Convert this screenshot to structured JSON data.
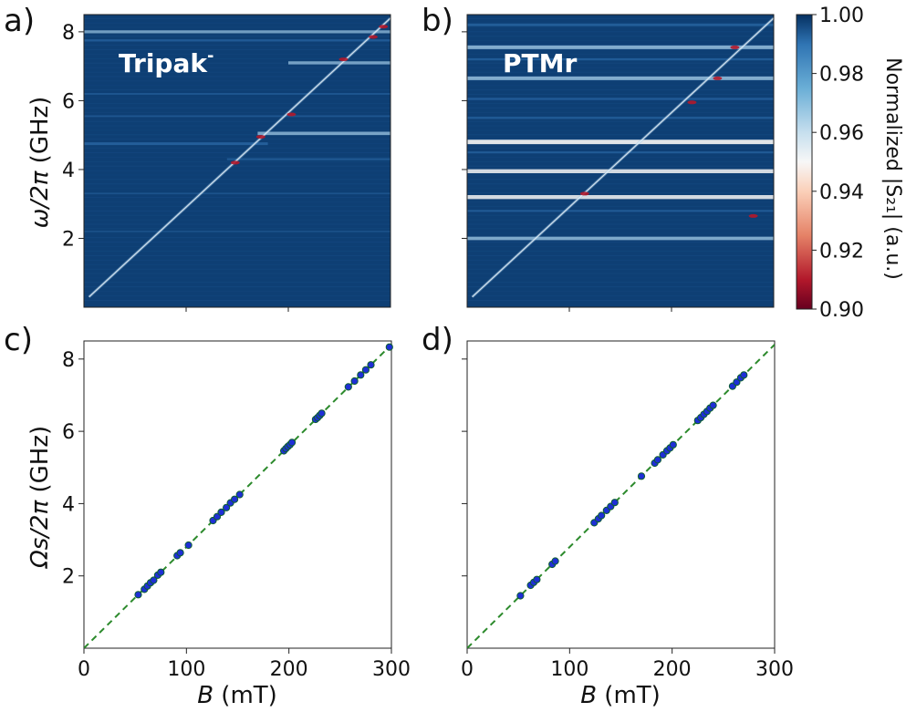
{
  "figure": {
    "panel_labels": [
      "a)",
      "b)",
      "c)",
      "d)"
    ]
  },
  "colors": {
    "map_bg": "#0e3f74",
    "map_mid": "#2f6fae",
    "map_light": "#9fc8e4",
    "map_white": "#f3f3f3",
    "map_red": "#b2182b",
    "marker_fill": "#1f2fd6",
    "marker_edge": "#0d5f2f",
    "fit_line": "#2c8a2c"
  },
  "chart_data": [
    {
      "id": "a",
      "type": "heatmap",
      "panel": "a)",
      "annotation": "Tripak",
      "annotation_sup": "-",
      "ylabel_main": "ω/2π",
      "ylabel_unit": " (GHz)",
      "xlabel": "",
      "xlim": [
        0,
        300
      ],
      "ylim": [
        0,
        8.5
      ],
      "yticks": [
        2,
        4,
        6,
        8
      ],
      "ytick_labels": [
        "2",
        "4",
        "6",
        "8"
      ],
      "xticks": [
        100,
        200
      ],
      "diagonal": {
        "from": [
          5,
          0.3
        ],
        "to": [
          300,
          8.4
        ]
      },
      "horizontal_lines": [
        {
          "f": 8.0,
          "weight": 0.55,
          "b_start": 0,
          "b_end": 300
        },
        {
          "f": 7.75,
          "weight": 0.35,
          "b_start": 0,
          "b_end": 300
        },
        {
          "f": 7.1,
          "weight": 0.6,
          "b_start": 200,
          "b_end": 300
        },
        {
          "f": 5.05,
          "weight": 0.65,
          "b_start": 170,
          "b_end": 300
        },
        {
          "f": 4.75,
          "weight": 0.5,
          "b_start": 0,
          "b_end": 180
        },
        {
          "f": 4.3,
          "weight": 0.3,
          "b_start": 140,
          "b_end": 300
        },
        {
          "f": 6.2,
          "weight": 0.2,
          "b_start": 0,
          "b_end": 300
        },
        {
          "f": 5.55,
          "weight": 0.2,
          "b_start": 0,
          "b_end": 300
        },
        {
          "f": 3.3,
          "weight": 0.12,
          "b_start": 0,
          "b_end": 300
        },
        {
          "f": 2.2,
          "weight": 0.12,
          "b_start": 0,
          "b_end": 300
        }
      ],
      "red_spots": [
        {
          "b": 148,
          "f": 4.2
        },
        {
          "b": 173,
          "f": 4.95
        },
        {
          "b": 203,
          "f": 5.6
        },
        {
          "b": 254,
          "f": 7.2
        },
        {
          "b": 283,
          "f": 7.85
        },
        {
          "b": 293,
          "f": 8.15
        }
      ]
    },
    {
      "id": "b",
      "type": "heatmap",
      "panel": "b)",
      "annotation": "PTMr",
      "xlabel": "",
      "xlim": [
        0,
        300
      ],
      "ylim": [
        0,
        8.5
      ],
      "yticks": [
        2,
        4,
        6,
        8
      ],
      "xticks": [
        100,
        200
      ],
      "diagonal": {
        "from": [
          5,
          0.3
        ],
        "to": [
          300,
          8.4
        ]
      },
      "horizontal_lines": [
        {
          "f": 8.2,
          "weight": 0.45,
          "b_start": 0,
          "b_end": 300
        },
        {
          "f": 7.55,
          "weight": 0.75,
          "b_start": 0,
          "b_end": 300
        },
        {
          "f": 7.2,
          "weight": 0.35,
          "b_start": 0,
          "b_end": 300
        },
        {
          "f": 6.65,
          "weight": 0.75,
          "b_start": 0,
          "b_end": 300
        },
        {
          "f": 6.05,
          "weight": 0.35,
          "b_start": 0,
          "b_end": 300
        },
        {
          "f": 5.5,
          "weight": 0.35,
          "b_start": 0,
          "b_end": 300
        },
        {
          "f": 4.8,
          "weight": 0.95,
          "b_start": 0,
          "b_end": 300
        },
        {
          "f": 4.5,
          "weight": 0.3,
          "b_start": 0,
          "b_end": 300
        },
        {
          "f": 3.95,
          "weight": 0.85,
          "b_start": 0,
          "b_end": 300
        },
        {
          "f": 3.2,
          "weight": 0.85,
          "b_start": 0,
          "b_end": 300
        },
        {
          "f": 2.8,
          "weight": 0.3,
          "b_start": 0,
          "b_end": 300
        },
        {
          "f": 2.0,
          "weight": 0.7,
          "b_start": 0,
          "b_end": 300
        }
      ],
      "red_spots": [
        {
          "b": 115,
          "f": 3.3
        },
        {
          "b": 220,
          "f": 5.95
        },
        {
          "b": 245,
          "f": 6.65
        },
        {
          "b": 262,
          "f": 7.55
        },
        {
          "b": 280,
          "f": 2.65
        }
      ]
    },
    {
      "id": "c",
      "type": "scatter",
      "panel": "c)",
      "xlabel_main": "B",
      "xlabel_unit": " (mT)",
      "ylabel_main": "Ωs/2π",
      "ylabel_unit": " (GHz)",
      "xlim": [
        0,
        300
      ],
      "ylim": [
        0,
        8.5
      ],
      "xticks": [
        0,
        100,
        200,
        300
      ],
      "xtick_labels": [
        "0",
        "100",
        "200",
        "300"
      ],
      "yticks": [
        2,
        4,
        6,
        8
      ],
      "ytick_labels": [
        "2",
        "4",
        "6",
        "8"
      ],
      "fit_line": {
        "x": [
          0,
          300
        ],
        "y": [
          0,
          8.4
        ]
      },
      "x": [
        53,
        59,
        62,
        65,
        68,
        72,
        75,
        91,
        94,
        102,
        126,
        130,
        134,
        139,
        143,
        147,
        152,
        195,
        197,
        199,
        201,
        203,
        226,
        228,
        230,
        232,
        258,
        264,
        270,
        275,
        280,
        298
      ],
      "y": [
        1.48,
        1.63,
        1.72,
        1.81,
        1.88,
        2.02,
        2.1,
        2.56,
        2.64,
        2.85,
        3.53,
        3.64,
        3.76,
        3.89,
        4.02,
        4.12,
        4.25,
        5.46,
        5.52,
        5.58,
        5.63,
        5.69,
        6.33,
        6.38,
        6.44,
        6.5,
        7.23,
        7.39,
        7.56,
        7.7,
        7.84,
        8.33
      ]
    },
    {
      "id": "d",
      "type": "scatter",
      "panel": "d)",
      "xlabel_main": "B",
      "xlabel_unit": " (mT)",
      "xlim": [
        0,
        300
      ],
      "ylim": [
        0,
        8.5
      ],
      "xticks": [
        0,
        100,
        200,
        300
      ],
      "xtick_labels": [
        "0",
        "100",
        "200",
        "300"
      ],
      "yticks": [
        2,
        4,
        6,
        8
      ],
      "fit_line": {
        "x": [
          0,
          300
        ],
        "y": [
          0,
          8.4
        ]
      },
      "x": [
        52,
        62,
        65,
        68,
        83,
        86,
        124,
        128,
        131,
        136,
        140,
        144,
        170,
        183,
        186,
        191,
        195,
        198,
        201,
        225,
        228,
        231,
        234,
        237,
        240,
        259,
        263,
        267,
        270
      ],
      "y": [
        1.45,
        1.74,
        1.82,
        1.9,
        2.32,
        2.41,
        3.47,
        3.58,
        3.67,
        3.81,
        3.92,
        4.03,
        4.76,
        5.12,
        5.21,
        5.35,
        5.46,
        5.54,
        5.63,
        6.3,
        6.38,
        6.47,
        6.55,
        6.64,
        6.72,
        7.25,
        7.36,
        7.48,
        7.56
      ]
    },
    {
      "id": "cbar",
      "type": "colorbar",
      "label": "Normalized |S₂₁| (a.u.)",
      "range": [
        0.9,
        1.0
      ],
      "ticks": [
        0.9,
        0.92,
        0.94,
        0.96,
        0.98,
        1.0
      ],
      "tick_labels": [
        "0.90",
        "0.92",
        "0.94",
        "0.96",
        "0.98",
        "1.00"
      ]
    }
  ]
}
